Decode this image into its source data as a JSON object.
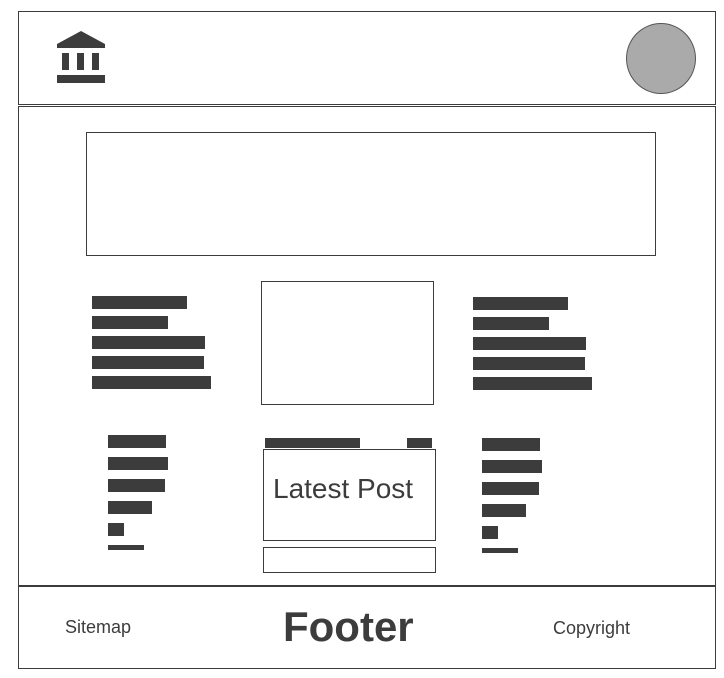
{
  "header": {
    "logo_icon": "bank-building-icon",
    "avatar_color": "#aaaaaa"
  },
  "main": {
    "latest_post": {
      "title": "Latest Post"
    }
  },
  "footer": {
    "sitemap": "Sitemap",
    "title": "Footer",
    "copyright": "Copyright"
  },
  "colors": {
    "ink": "#3c3c3c",
    "avatar": "#aaaaaa",
    "background": "#ffffff"
  }
}
